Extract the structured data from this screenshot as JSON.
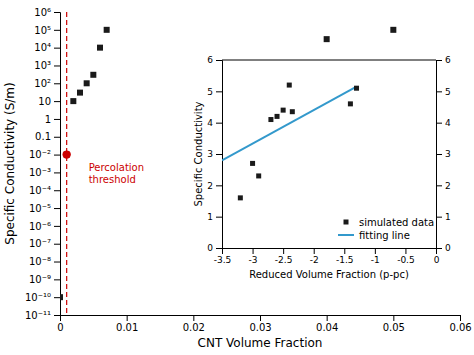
{
  "chart_data": [
    {
      "type": "scatter",
      "xlabel": "CNT Volume Fraction",
      "ylabel": "Specific Conductivity (S/m)",
      "log": "y",
      "grid": false,
      "xlim": [
        0,
        0.06
      ],
      "xticks": [
        0,
        0.01,
        0.02,
        0.03,
        0.04,
        0.05,
        0.06
      ],
      "ylim": [
        1e-11,
        1000000
      ],
      "yticks": [
        {
          "value": 1e-11,
          "label": "10⁻¹¹"
        },
        {
          "value": 1e-10,
          "label": "10⁻¹⁰"
        },
        {
          "value": 1e-09,
          "label": "10⁻⁹"
        },
        {
          "value": 1e-08,
          "label": "10⁻⁸"
        },
        {
          "value": 1e-07,
          "label": "10⁻⁷"
        },
        {
          "value": 1e-06,
          "label": "10⁻⁶"
        },
        {
          "value": 1e-05,
          "label": "10⁻⁵"
        },
        {
          "value": 0.0001,
          "label": "10⁻⁴"
        },
        {
          "value": 0.001,
          "label": "10⁻³"
        },
        {
          "value": 0.01,
          "label": "10⁻²"
        },
        0.1,
        1,
        10,
        {
          "value": 100,
          "label": "10²"
        },
        {
          "value": 1000,
          "label": "10³"
        },
        {
          "value": 10000,
          "label": "10⁴"
        },
        {
          "value": 100000,
          "label": "10⁵"
        },
        {
          "value": 1000000,
          "label": "10⁶"
        }
      ],
      "series": [
        {
          "type": "scatter",
          "marker": "square",
          "color": "#1a1a1a",
          "x": [
            0.0,
            0.001,
            0.002,
            0.003,
            0.004,
            0.005,
            0.006,
            0.007,
            0.04,
            0.05
          ],
          "values": [
            1e-10,
            0.01,
            10,
            30,
            100,
            300,
            10000,
            100000,
            30000,
            100000
          ]
        },
        {
          "type": "scatter",
          "marker": "circle",
          "color": "#cc0000",
          "x": [
            0.001
          ],
          "values": [
            0.01
          ]
        }
      ],
      "vlines": [
        {
          "x": 0.001,
          "color": "#cc0000",
          "line_style": "dashed"
        }
      ],
      "annotations": [
        {
          "text": "Percolation\nthreshold",
          "x": 0.001,
          "y": 0.01,
          "color": "#cc0000"
        }
      ]
    },
    {
      "type": "scatter",
      "xlabel": "Reduced Volume Fraction (p-pc)",
      "ylabel": "Specific Conductivity",
      "grid": false,
      "legend": "lower right",
      "xlim": [
        -3.5,
        0
      ],
      "xticks": [
        -3.5,
        -3,
        -2.5,
        -2,
        -1.5,
        -1,
        -0.5,
        0
      ],
      "ylim": [
        0,
        6
      ],
      "yticks": [
        0,
        1,
        2,
        3,
        4,
        5,
        6
      ],
      "y2lim": [
        0,
        6
      ],
      "y2ticks": [
        0,
        1,
        2,
        3,
        4,
        5,
        6
      ],
      "series": [
        {
          "name": "simulated data",
          "type": "scatter",
          "marker": "square",
          "color": "#1a1a1a",
          "x": [
            -3.2,
            -3.0,
            -2.9,
            -2.7,
            -2.6,
            -2.5,
            -2.4,
            -2.35,
            -1.4,
            -1.3
          ],
          "values": [
            1.6,
            2.7,
            2.3,
            4.1,
            4.2,
            4.4,
            5.2,
            4.35,
            4.6,
            5.1
          ]
        },
        {
          "name": "fitting line",
          "type": "line",
          "color": "#3399cc",
          "x": [
            -3.5,
            -1.3
          ],
          "values": [
            2.8,
            5.15
          ]
        }
      ]
    }
  ]
}
